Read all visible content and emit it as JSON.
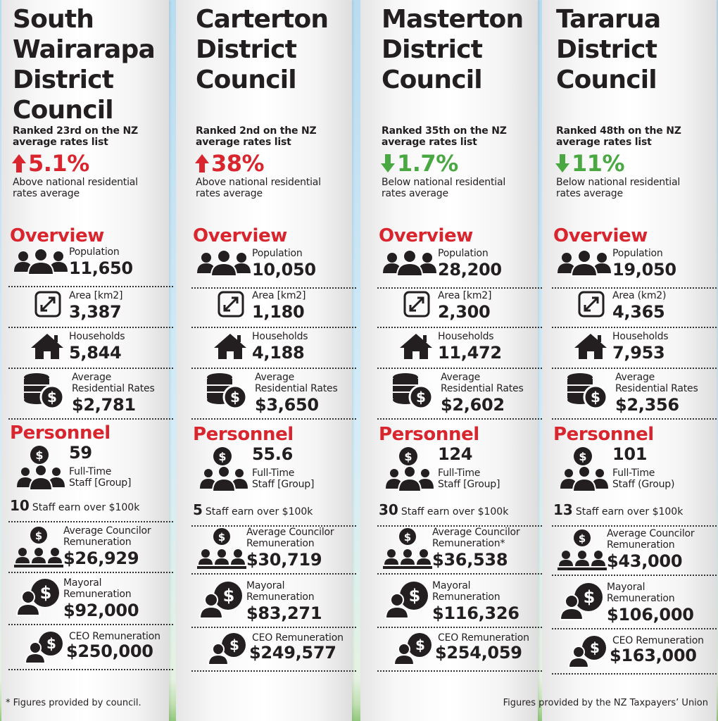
{
  "councils": [
    {
      "name_lines": [
        "South",
        "Wairarapa",
        "District",
        "Council"
      ],
      "rank_line1": "Ranked 23rd on the NZ",
      "rank_line2": "average rates list",
      "direction": "up",
      "percent": "5.1%",
      "cmp_line1": "Above national residential",
      "cmp_line2": "rates average",
      "overview_heading": "Overview",
      "population_label": "Population",
      "population": "11,650",
      "area_label": "Area [km2]",
      "area": "3,387",
      "households_label": "Households",
      "households": "5,844",
      "rates_label_1": "Average",
      "rates_label_2": "Residential Rates",
      "rates": "$2,781",
      "personnel_heading": "Personnel",
      "fte": "59",
      "fte_label_1": "Full-Time",
      "fte_label_2": "Staff [Group]",
      "staff_over": "10",
      "staff_over_label": "Staff earn over $100k",
      "councillor_label_1": "Average Councilor",
      "councillor_label_2": "Remuneration",
      "councillor": "$26,929",
      "mayor_label_1": "Mayoral",
      "mayor_label_2": "Remuneration",
      "mayor": "$92,000",
      "ceo_label": "CEO Remuneration",
      "ceo": "$250,000"
    },
    {
      "name_lines": [
        "Carterton",
        "District",
        "Council",
        ""
      ],
      "rank_line1": "Ranked 2nd on the NZ",
      "rank_line2": "average rates list",
      "direction": "up",
      "percent": "38%",
      "cmp_line1": "Above national residential",
      "cmp_line2": "rates average",
      "overview_heading": "Overview",
      "population_label": "Population",
      "population": "10,050",
      "area_label": "Area [km2]",
      "area": "1,180",
      "households_label": "Households",
      "households": "4,188",
      "rates_label_1": "Average",
      "rates_label_2": "Residential Rates",
      "rates": "$3,650",
      "personnel_heading": "Personnel",
      "fte": "55.6",
      "fte_label_1": "Full-Time",
      "fte_label_2": "Staff [Group]",
      "staff_over": "5",
      "staff_over_label": "Staff earn over $100k",
      "councillor_label_1": "Average Councilor",
      "councillor_label_2": "Remuneration",
      "councillor": "$30,719",
      "mayor_label_1": "Mayoral",
      "mayor_label_2": "Remuneration",
      "mayor": "$83,271",
      "ceo_label": "CEO Remuneration",
      "ceo": "$249,577"
    },
    {
      "name_lines": [
        "Masterton",
        "District",
        "Council",
        ""
      ],
      "rank_line1": "Ranked 35th on the NZ",
      "rank_line2": "average rates list",
      "direction": "down",
      "percent": "1.7%",
      "cmp_line1": "Below national residential",
      "cmp_line2": "rates average",
      "overview_heading": "Overview",
      "population_label": "Population",
      "population": "28,200",
      "area_label": "Area [km2]",
      "area": "2,300",
      "households_label": "Households",
      "households": "11,472",
      "rates_label_1": "Average",
      "rates_label_2": "Residential Rates",
      "rates": "$2,602",
      "personnel_heading": "Personnel",
      "fte": "124",
      "fte_label_1": "Full-Time",
      "fte_label_2": "Staff [Group]",
      "staff_over": "30",
      "staff_over_label": "Staff earn over $100k",
      "councillor_label_1": "Average Councilor",
      "councillor_label_2": "Remuneration*",
      "councillor": "$36,538",
      "mayor_label_1": "Mayoral",
      "mayor_label_2": "Remuneration",
      "mayor": "$116,326",
      "ceo_label": "CEO Remuneration",
      "ceo": "$254,059"
    },
    {
      "name_lines": [
        "Tararua",
        "District",
        "Council",
        ""
      ],
      "rank_line1": "Ranked 48th on the NZ",
      "rank_line2": "average rates list",
      "direction": "down",
      "percent": "11%",
      "cmp_line1": "Below national residential",
      "cmp_line2": "rates average",
      "overview_heading": "Overview",
      "population_label": "Population",
      "population": "19,050",
      "area_label": "Area (km2)",
      "area": "4,365",
      "households_label": "Households",
      "households": "7,953",
      "rates_label_1": "Average",
      "rates_label_2": "Residential Rates",
      "rates": "$2,356",
      "personnel_heading": "Personnel",
      "fte": "101",
      "fte_label_1": "Full-Time",
      "fte_label_2": "Staff (Group)",
      "staff_over": "13",
      "staff_over_label": "Staff earn over $100k",
      "councillor_label_1": "Average Councilor",
      "councillor_label_2": "Remuneration",
      "councillor": "$43,000",
      "mayor_label_1": "Mayoral",
      "mayor_label_2": "Remuneration",
      "mayor": "$106,000",
      "ceo_label": "CEO Remuneration",
      "ceo": "$163,000"
    }
  ],
  "footer": {
    "left": "* Figures provided by council.",
    "right": "Figures provided by the NZ Taxpayers’ Union"
  },
  "colors": {
    "red": "#d9252e",
    "green": "#4aa842",
    "dark": "#231f20"
  }
}
